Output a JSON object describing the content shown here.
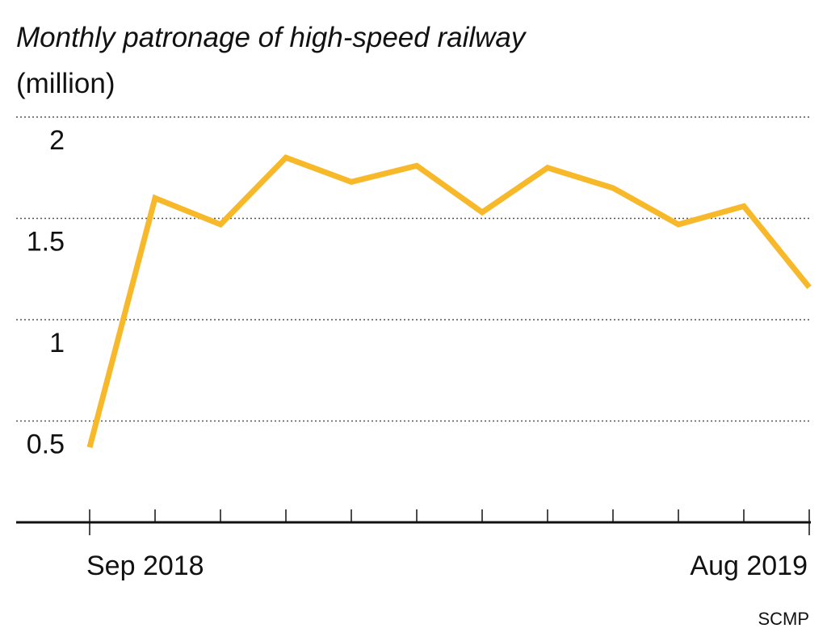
{
  "chart_data": {
    "type": "line",
    "title": "Monthly patronage of high-speed railway",
    "subtitle": "(million)",
    "source": "SCMP",
    "categories": [
      "Sep 2018",
      null,
      null,
      null,
      null,
      null,
      null,
      null,
      null,
      null,
      null,
      "Aug 2019"
    ],
    "series": [
      {
        "name": "Patronage",
        "color": "#f7b829",
        "values": [
          0.37,
          1.6,
          1.47,
          1.8,
          1.68,
          1.76,
          1.53,
          1.75,
          1.65,
          1.47,
          1.56,
          1.16
        ]
      }
    ],
    "ylim": [
      0,
      2
    ],
    "yticks": [
      0.5,
      1,
      1.5,
      2
    ],
    "grid": true
  }
}
